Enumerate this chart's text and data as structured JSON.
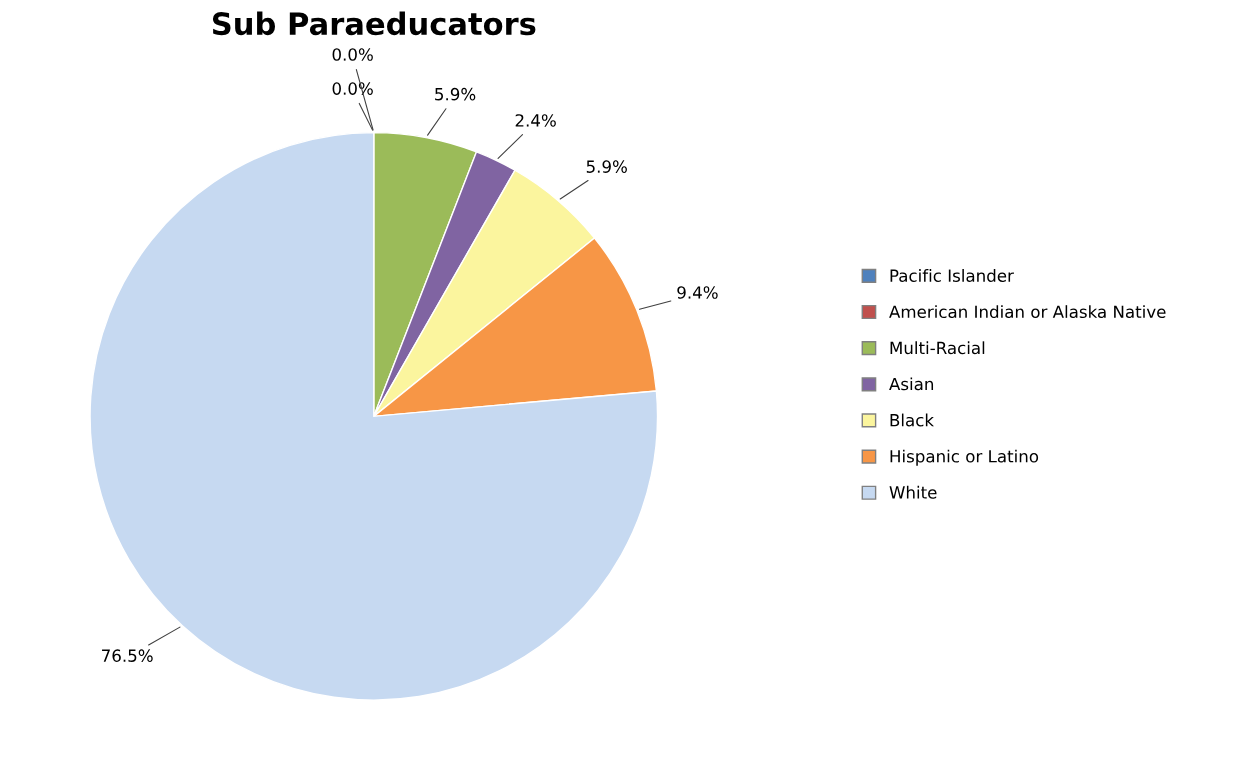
{
  "chart_data": {
    "type": "pie",
    "title": "Sub Paraeducators",
    "categories": [
      "Pacific Islander",
      "American Indian or Alaska Native",
      "Multi-Racial",
      "Asian",
      "Black",
      "Hispanic or Latino",
      "White"
    ],
    "values": [
      0.0,
      0.0,
      5.9,
      2.4,
      5.9,
      9.4,
      76.5
    ],
    "value_labels": [
      "0.0%",
      "0.0%",
      "5.9%",
      "2.4%",
      "5.9%",
      "9.4%",
      "76.5%"
    ],
    "colors": [
      "#4f81bd",
      "#c0504d",
      "#9bbb59",
      "#8064a2",
      "#fbf59e",
      "#f79646",
      "#c6d9f1"
    ],
    "legend": "right"
  }
}
